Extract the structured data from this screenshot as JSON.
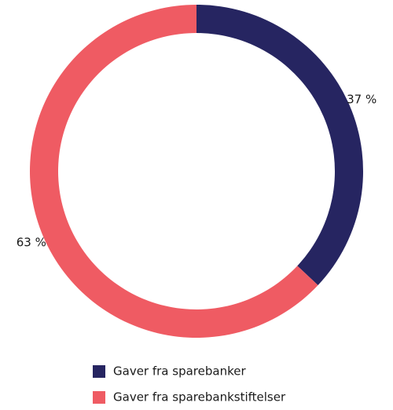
{
  "chart_data": {
    "type": "donut",
    "categories": [
      "Gaver fra sparebanker",
      "Gaver fra sparebankstiftelser"
    ],
    "values": [
      37,
      63
    ],
    "value_labels": [
      "37 %",
      "63 %"
    ],
    "colors": [
      "#262561",
      "#ef5b63"
    ]
  }
}
